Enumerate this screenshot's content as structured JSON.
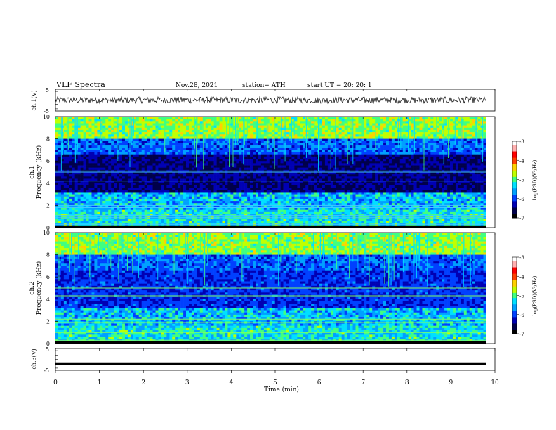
{
  "header": {
    "title": "VLF  Spectra",
    "date": "Nov.28, 2021",
    "station": "station= ATH",
    "start": "start  UT  =   20: 20: 1"
  },
  "colors": {
    "colormap": [
      "#000000",
      "#00004a",
      "#0000b4",
      "#0040ff",
      "#00a0ff",
      "#00e0ff",
      "#40ff80",
      "#c0ff00",
      "#ffd000",
      "#ff4000",
      "#ff0000",
      "#ffb0b0",
      "#ffffff"
    ]
  },
  "chart_data": [
    {
      "type": "line",
      "panel": "ch1-waveform",
      "ylabel": "ch.1(V)",
      "ylim": [
        -5,
        5
      ],
      "yticks": [
        "5",
        "-5"
      ],
      "xlim": [
        0,
        10
      ],
      "description_level": 0,
      "amplitude": 1.5
    },
    {
      "type": "heatmap",
      "panel": "ch1-spectrogram",
      "ylabel": "ch.1\nFrequency (kHz)",
      "ylabel_lines": [
        "ch.1",
        "Frequency  (kHz)"
      ],
      "ylim": [
        0,
        10
      ],
      "yticks": [
        "0",
        "2",
        "4",
        "6",
        "8",
        "10"
      ],
      "xlim": [
        0,
        9.8
      ],
      "colorbar": {
        "label": "log(PSD)(V²/Hz)",
        "ticks": [
          "-3",
          "-4",
          "-5",
          "-6",
          "-7"
        ],
        "range": [
          -7,
          -3
        ]
      }
    },
    {
      "type": "heatmap",
      "panel": "ch2-spectrogram",
      "ylabel_lines": [
        "ch.2",
        "Frequency  (kHz)"
      ],
      "ylim": [
        0,
        10
      ],
      "yticks": [
        "0",
        "2",
        "4",
        "6",
        "8",
        "10"
      ],
      "xlim": [
        0,
        9.8
      ],
      "colorbar": {
        "label": "log(PSD)(V²/Hz)",
        "ticks": [
          "-3",
          "-4",
          "-5",
          "-6",
          "-7"
        ],
        "range": [
          -7,
          -3
        ]
      }
    },
    {
      "type": "line",
      "panel": "ch3-waveform",
      "ylabel": "ch.3(V)",
      "ylim": [
        -5,
        5
      ],
      "yticks": [
        "5",
        "-5"
      ],
      "xlim": [
        0,
        10
      ],
      "level": -2,
      "amplitude": 0
    }
  ],
  "xaxis": {
    "label": "Time  (min)",
    "ticks": [
      "0",
      "1",
      "2",
      "3",
      "4",
      "5",
      "6",
      "7",
      "8",
      "9",
      "10"
    ],
    "range": [
      0,
      10
    ]
  }
}
